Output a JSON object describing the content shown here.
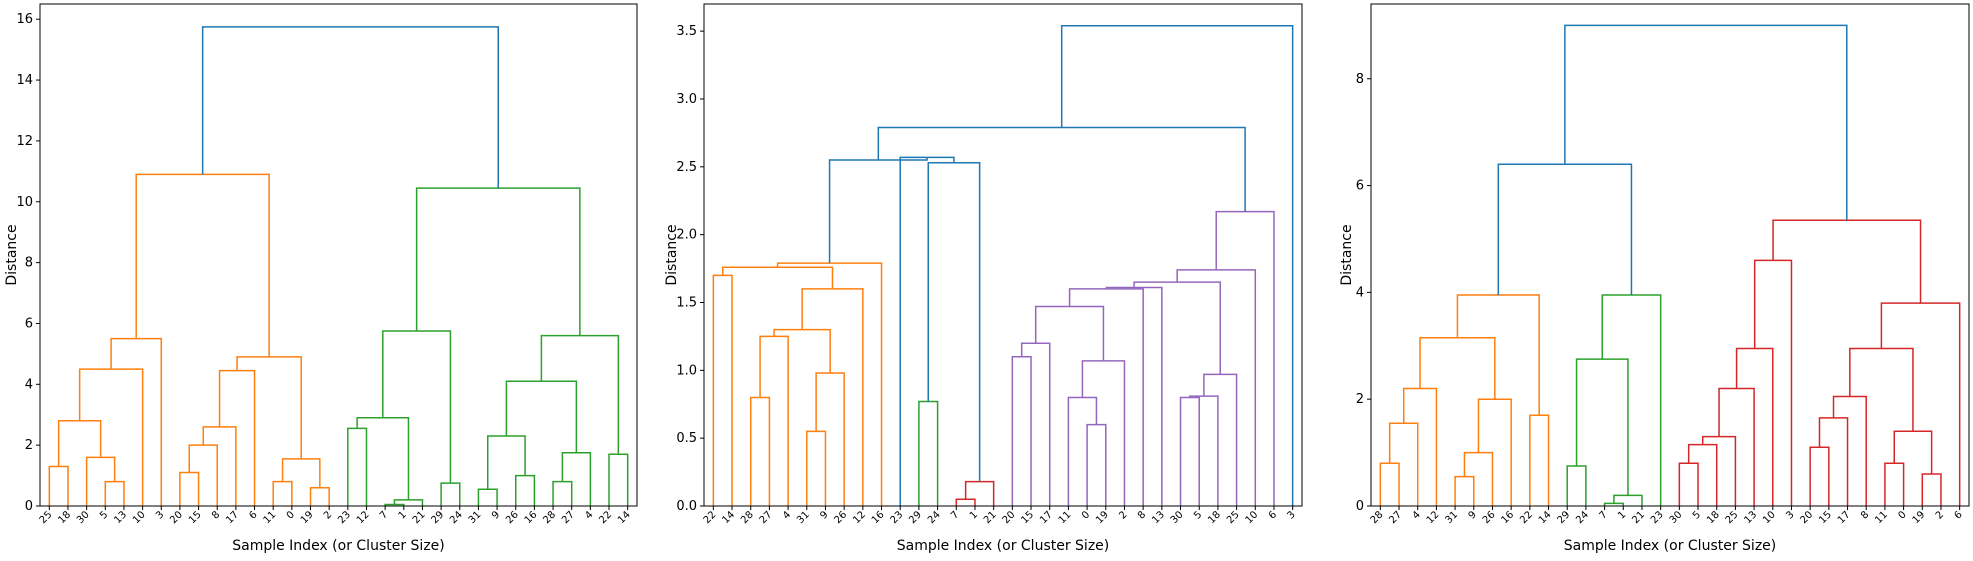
{
  "chart_data": [
    {
      "type": "dendrogram",
      "xlabel": "Sample Index (or Cluster Size)",
      "ylabel": "Distance",
      "ylim": [
        0,
        16.5
      ],
      "yticks": [
        0,
        2,
        4,
        6,
        8,
        10,
        12,
        14,
        16
      ],
      "ytick_labels": [
        "0",
        "2",
        "4",
        "6",
        "8",
        "10",
        "12",
        "14",
        "16"
      ],
      "leaves": [
        "25",
        "18",
        "30",
        "5",
        "13",
        "10",
        "3",
        "20",
        "15",
        "8",
        "17",
        "6",
        "11",
        "0",
        "19",
        "2",
        "23",
        "12",
        "7",
        "1",
        "21",
        "29",
        "24",
        "31",
        "9",
        "26",
        "16",
        "28",
        "27",
        "4",
        "22",
        "14"
      ],
      "links": [
        {
          "l": "L0",
          "r": "L1",
          "h": 1.3,
          "color": "#ff7f0e"
        },
        {
          "l": "L3",
          "r": "L4",
          "h": 0.8,
          "color": "#ff7f0e"
        },
        {
          "l": "L2",
          "r": "N1",
          "h": 1.6,
          "color": "#ff7f0e"
        },
        {
          "l": "N0",
          "r": "N2",
          "h": 2.8,
          "color": "#ff7f0e"
        },
        {
          "l": "N3",
          "r": "L5",
          "h": 4.5,
          "color": "#ff7f0e"
        },
        {
          "l": "N4",
          "r": "L6",
          "h": 5.5,
          "color": "#ff7f0e"
        },
        {
          "l": "L7",
          "r": "L8",
          "h": 1.1,
          "color": "#ff7f0e"
        },
        {
          "l": "N6",
          "r": "L9",
          "h": 2.0,
          "color": "#ff7f0e"
        },
        {
          "l": "N7",
          "r": "L10",
          "h": 2.6,
          "color": "#ff7f0e"
        },
        {
          "l": "N8",
          "r": "L11",
          "h": 4.45,
          "color": "#ff7f0e"
        },
        {
          "l": "L12",
          "r": "L13",
          "h": 0.8,
          "color": "#ff7f0e"
        },
        {
          "l": "L14",
          "r": "L15",
          "h": 0.6,
          "color": "#ff7f0e"
        },
        {
          "l": "N10",
          "r": "N11",
          "h": 1.55,
          "color": "#ff7f0e"
        },
        {
          "l": "N9",
          "r": "N12",
          "h": 4.9,
          "color": "#ff7f0e"
        },
        {
          "l": "N5",
          "r": "N13",
          "h": 10.9,
          "color": "#ff7f0e"
        },
        {
          "l": "L18",
          "r": "L19",
          "h": 0.05,
          "color": "#2ca02c"
        },
        {
          "l": "N15",
          "r": "L20",
          "h": 0.2,
          "color": "#2ca02c"
        },
        {
          "l": "L16",
          "r": "L17",
          "h": 2.55,
          "color": "#2ca02c"
        },
        {
          "l": "N17",
          "r": "N16",
          "h": 2.9,
          "color": "#2ca02c"
        },
        {
          "l": "L21",
          "r": "L22",
          "h": 0.75,
          "color": "#2ca02c"
        },
        {
          "l": "N18",
          "r": "N19",
          "h": 5.75,
          "color": "#2ca02c"
        },
        {
          "l": "L23",
          "r": "L24",
          "h": 0.55,
          "color": "#2ca02c"
        },
        {
          "l": "L25",
          "r": "L26",
          "h": 1.0,
          "color": "#2ca02c"
        },
        {
          "l": "N21",
          "r": "N22",
          "h": 2.3,
          "color": "#2ca02c"
        },
        {
          "l": "L27",
          "r": "L28",
          "h": 0.8,
          "color": "#2ca02c"
        },
        {
          "l": "N24",
          "r": "L29",
          "h": 1.75,
          "color": "#2ca02c"
        },
        {
          "l": "N23",
          "r": "N25",
          "h": 4.1,
          "color": "#2ca02c"
        },
        {
          "l": "L30",
          "r": "L31",
          "h": 1.7,
          "color": "#2ca02c"
        },
        {
          "l": "N26",
          "r": "N27",
          "h": 5.6,
          "color": "#2ca02c"
        },
        {
          "l": "N20",
          "r": "N28",
          "h": 10.45,
          "color": "#2ca02c"
        },
        {
          "l": "N14",
          "r": "N29",
          "h": 15.75,
          "color": "#1f77b4"
        }
      ]
    },
    {
      "type": "dendrogram",
      "xlabel": "Sample Index (or Cluster Size)",
      "ylabel": "Distance",
      "ylim": [
        0,
        3.7
      ],
      "yticks": [
        0,
        0.5,
        1.0,
        1.5,
        2.0,
        2.5,
        3.0,
        3.5
      ],
      "ytick_labels": [
        "0.0",
        "0.5",
        "1.0",
        "1.5",
        "2.0",
        "2.5",
        "3.0",
        "3.5"
      ],
      "leaves": [
        "22",
        "14",
        "28",
        "27",
        "4",
        "31",
        "9",
        "26",
        "12",
        "16",
        "23",
        "29",
        "24",
        "7",
        "1",
        "21",
        "20",
        "15",
        "17",
        "11",
        "0",
        "19",
        "2",
        "8",
        "13",
        "30",
        "5",
        "18",
        "25",
        "10",
        "6",
        "3"
      ],
      "links": [
        {
          "l": "L0",
          "r": "L1",
          "h": 1.7,
          "color": "#ff7f0e"
        },
        {
          "l": "L2",
          "r": "L3",
          "h": 0.8,
          "color": "#ff7f0e"
        },
        {
          "l": "N1",
          "r": "L4",
          "h": 1.25,
          "color": "#ff7f0e"
        },
        {
          "l": "L5",
          "r": "L6",
          "h": 0.55,
          "color": "#ff7f0e"
        },
        {
          "l": "N3",
          "r": "L7",
          "h": 0.98,
          "color": "#ff7f0e"
        },
        {
          "l": "N2",
          "r": "N4",
          "h": 1.3,
          "color": "#ff7f0e"
        },
        {
          "l": "N5",
          "r": "L8",
          "h": 1.6,
          "color": "#ff7f0e"
        },
        {
          "l": "N0",
          "r": "N6",
          "h": 1.76,
          "color": "#ff7f0e"
        },
        {
          "l": "N7",
          "r": "L9",
          "h": 1.79,
          "color": "#ff7f0e"
        },
        {
          "l": "L11",
          "r": "L12",
          "h": 0.77,
          "color": "#2ca02c"
        },
        {
          "l": "L13",
          "r": "L14",
          "h": 0.05,
          "color": "#d62728"
        },
        {
          "l": "N10",
          "r": "L15",
          "h": 0.18,
          "color": "#d62728"
        },
        {
          "l": "N9",
          "r": "N11",
          "h": 2.53,
          "color": "#1f77b4"
        },
        {
          "l": "L10",
          "r": "N12",
          "h": 2.57,
          "color": "#1f77b4"
        },
        {
          "l": "N8",
          "r": "N13",
          "h": 2.55,
          "color": "#1f77b4"
        },
        {
          "l": "L16",
          "r": "L17",
          "h": 1.1,
          "color": "#9467bd"
        },
        {
          "l": "N15",
          "r": "L18",
          "h": 1.2,
          "color": "#9467bd"
        },
        {
          "l": "L20",
          "r": "L21",
          "h": 0.6,
          "color": "#9467bd"
        },
        {
          "l": "L19",
          "r": "N17",
          "h": 0.8,
          "color": "#9467bd"
        },
        {
          "l": "N18",
          "r": "L22",
          "h": 1.07,
          "color": "#9467bd"
        },
        {
          "l": "N16",
          "r": "N19",
          "h": 1.47,
          "color": "#9467bd"
        },
        {
          "l": "N20",
          "r": "L23",
          "h": 1.6,
          "color": "#9467bd"
        },
        {
          "l": "N21",
          "r": "L24",
          "h": 1.61,
          "color": "#9467bd"
        },
        {
          "l": "L25",
          "r": "L26",
          "h": 0.8,
          "color": "#9467bd"
        },
        {
          "l": "N23",
          "r": "L27",
          "h": 0.81,
          "color": "#9467bd"
        },
        {
          "l": "N24",
          "r": "L28",
          "h": 0.97,
          "color": "#9467bd"
        },
        {
          "l": "N22",
          "r": "N25",
          "h": 1.65,
          "color": "#9467bd"
        },
        {
          "l": "N26",
          "r": "L29",
          "h": 1.74,
          "color": "#9467bd"
        },
        {
          "l": "N27",
          "r": "L30",
          "h": 2.17,
          "color": "#9467bd"
        },
        {
          "l": "N14",
          "r": "N28",
          "h": 2.79,
          "color": "#1f77b4"
        },
        {
          "l": "N29",
          "r": "L31",
          "h": 3.54,
          "color": "#1f77b4"
        }
      ]
    },
    {
      "type": "dendrogram",
      "xlabel": "Sample Index (or Cluster Size)",
      "ylabel": "Distance",
      "ylim": [
        0,
        9.4
      ],
      "yticks": [
        0,
        2,
        4,
        6,
        8
      ],
      "ytick_labels": [
        "0",
        "2",
        "4",
        "6",
        "8"
      ],
      "leaves": [
        "28",
        "27",
        "4",
        "12",
        "31",
        "9",
        "26",
        "16",
        "22",
        "14",
        "29",
        "24",
        "7",
        "1",
        "21",
        "23",
        "30",
        "5",
        "18",
        "25",
        "13",
        "10",
        "3",
        "20",
        "15",
        "17",
        "8",
        "11",
        "0",
        "19",
        "2",
        "6"
      ],
      "links": [
        {
          "l": "L0",
          "r": "L1",
          "h": 0.8,
          "color": "#ff7f0e"
        },
        {
          "l": "N0",
          "r": "L2",
          "h": 1.55,
          "color": "#ff7f0e"
        },
        {
          "l": "N1",
          "r": "L3",
          "h": 2.2,
          "color": "#ff7f0e"
        },
        {
          "l": "L4",
          "r": "L5",
          "h": 0.55,
          "color": "#ff7f0e"
        },
        {
          "l": "N3",
          "r": "L6",
          "h": 1.0,
          "color": "#ff7f0e"
        },
        {
          "l": "N4",
          "r": "L7",
          "h": 2.0,
          "color": "#ff7f0e"
        },
        {
          "l": "N2",
          "r": "N5",
          "h": 3.15,
          "color": "#ff7f0e"
        },
        {
          "l": "L8",
          "r": "L9",
          "h": 1.7,
          "color": "#ff7f0e"
        },
        {
          "l": "N6",
          "r": "N7",
          "h": 3.95,
          "color": "#ff7f0e"
        },
        {
          "l": "L10",
          "r": "L11",
          "h": 0.75,
          "color": "#2ca02c"
        },
        {
          "l": "L12",
          "r": "L13",
          "h": 0.05,
          "color": "#2ca02c"
        },
        {
          "l": "N10",
          "r": "L14",
          "h": 0.2,
          "color": "#2ca02c"
        },
        {
          "l": "N9",
          "r": "N11",
          "h": 2.75,
          "color": "#2ca02c"
        },
        {
          "l": "N12",
          "r": "L15",
          "h": 3.95,
          "color": "#2ca02c"
        },
        {
          "l": "N8",
          "r": "N13",
          "h": 6.4,
          "color": "#1f77b4"
        },
        {
          "l": "L16",
          "r": "L17",
          "h": 0.8,
          "color": "#d62728"
        },
        {
          "l": "N15",
          "r": "L18",
          "h": 1.15,
          "color": "#d62728"
        },
        {
          "l": "N16",
          "r": "L19",
          "h": 1.3,
          "color": "#d62728"
        },
        {
          "l": "N17",
          "r": "L20",
          "h": 2.2,
          "color": "#d62728"
        },
        {
          "l": "N18",
          "r": "L21",
          "h": 2.95,
          "color": "#d62728"
        },
        {
          "l": "N19",
          "r": "L22",
          "h": 4.6,
          "color": "#d62728"
        },
        {
          "l": "L23",
          "r": "L24",
          "h": 1.1,
          "color": "#d62728"
        },
        {
          "l": "N21",
          "r": "L25",
          "h": 1.65,
          "color": "#d62728"
        },
        {
          "l": "N22",
          "r": "L26",
          "h": 2.05,
          "color": "#d62728"
        },
        {
          "l": "L27",
          "r": "L28",
          "h": 0.8,
          "color": "#d62728"
        },
        {
          "l": "L29",
          "r": "L30",
          "h": 0.6,
          "color": "#d62728"
        },
        {
          "l": "N24",
          "r": "N25",
          "h": 1.4,
          "color": "#d62728"
        },
        {
          "l": "N23",
          "r": "N26",
          "h": 2.95,
          "color": "#d62728"
        },
        {
          "l": "N27",
          "r": "L31",
          "h": 3.8,
          "color": "#d62728"
        },
        {
          "l": "N20",
          "r": "N28",
          "h": 5.35,
          "color": "#d62728"
        },
        {
          "l": "N14",
          "r": "N29",
          "h": 9.0,
          "color": "#1f77b4"
        }
      ]
    }
  ]
}
